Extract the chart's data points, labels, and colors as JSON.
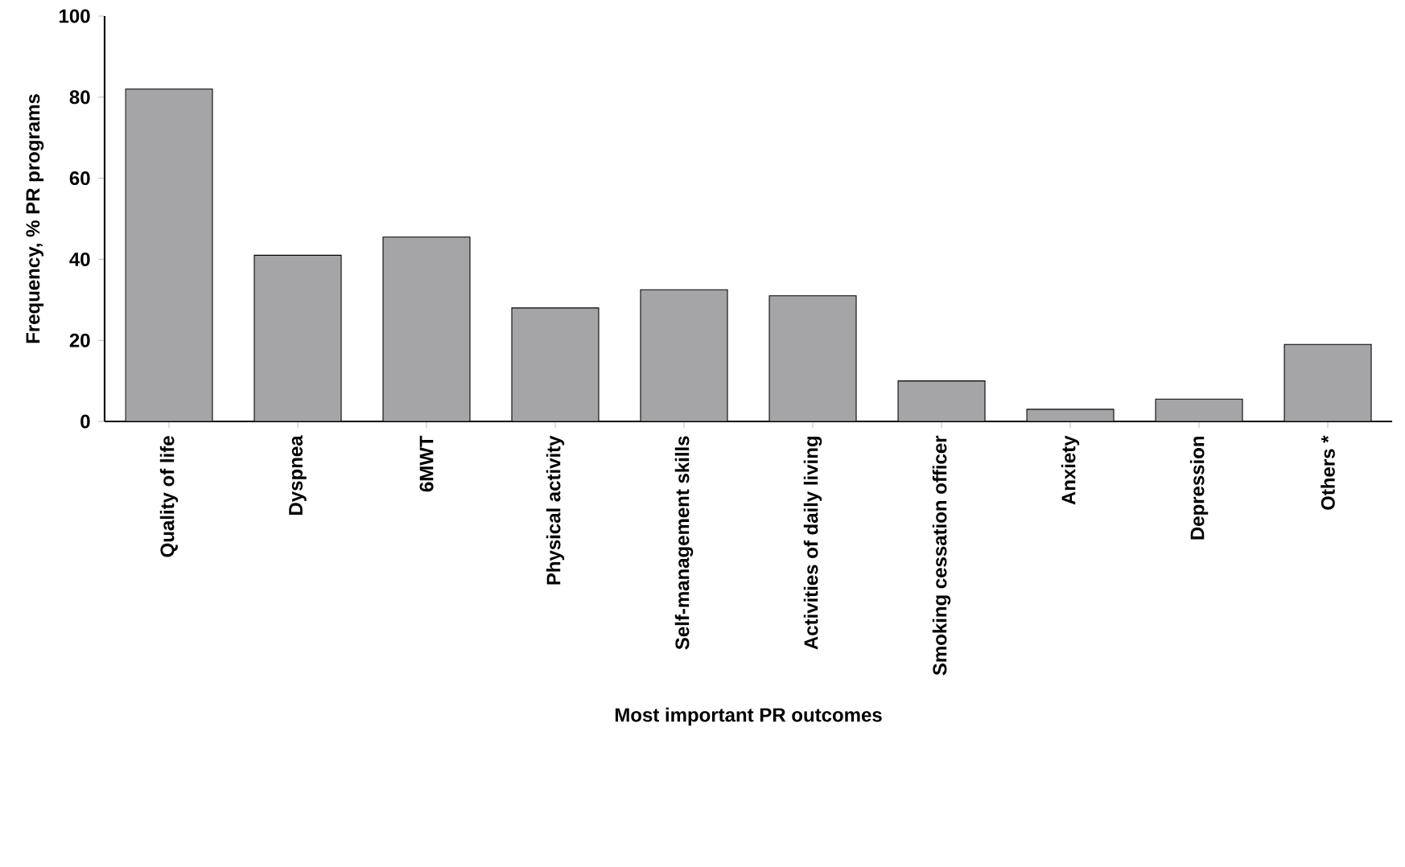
{
  "chart_data": {
    "type": "bar",
    "xlabel": "Most important PR outcomes",
    "ylabel": "Frequency, % PR programs",
    "categories": [
      "Quality of life",
      "Dyspnea",
      "6MWT",
      "Physical activity",
      "Self-management skills",
      "Activities of daily living",
      "Smoking cessation officer",
      "Anxiety",
      "Depression",
      "Others *"
    ],
    "values": [
      82,
      41,
      45.5,
      28,
      32.5,
      31,
      10,
      3,
      5.5,
      19
    ],
    "color": "#a5a5a8",
    "ylim": [
      0,
      100
    ],
    "yticks": [
      0,
      20,
      40,
      60,
      80,
      100
    ],
    "grid": false
  }
}
